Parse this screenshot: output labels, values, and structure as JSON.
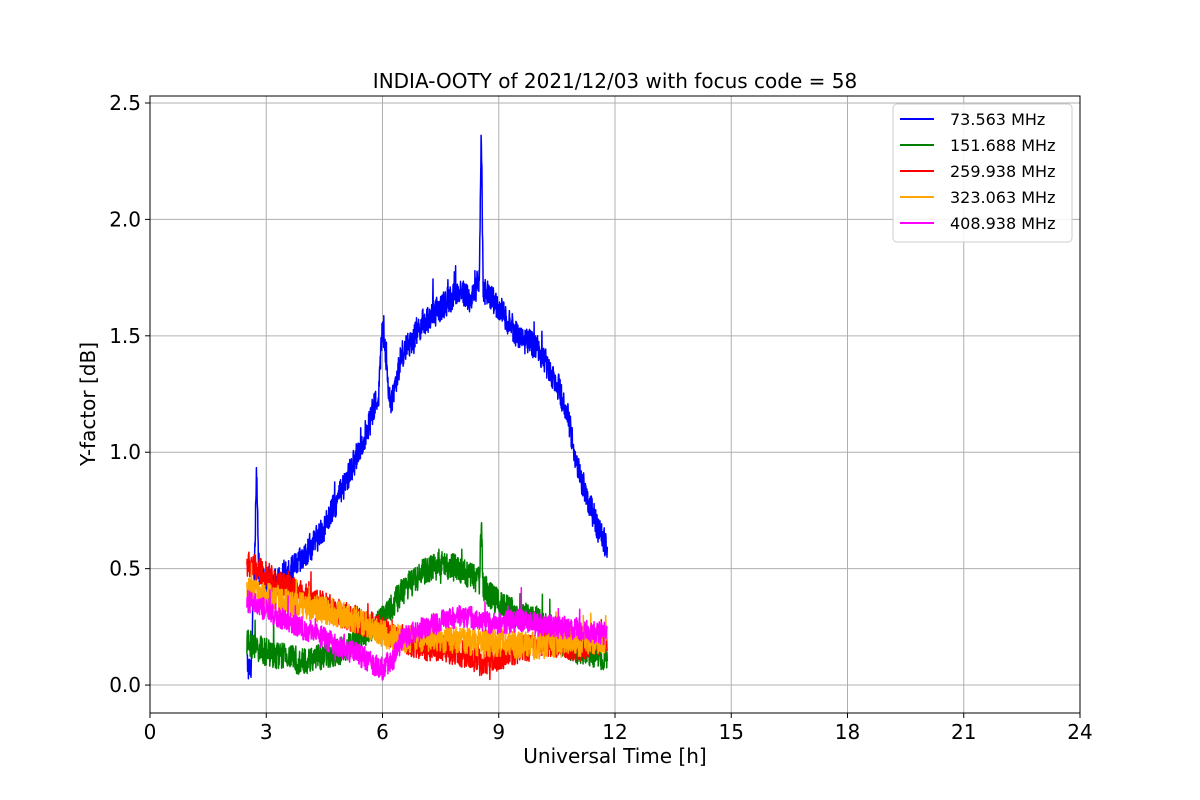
{
  "chart_data": {
    "type": "line",
    "title": "INDIA-OOTY of 2021/12/03 with focus code = 58",
    "xlabel": "Universal Time [h]",
    "ylabel": "Y-factor [dB]",
    "xlim": [
      0,
      24
    ],
    "ylim": [
      -0.12,
      2.53
    ],
    "xticks": [
      0,
      3,
      6,
      9,
      12,
      15,
      18,
      21,
      24
    ],
    "xtick_labels": [
      "0",
      "3",
      "6",
      "9",
      "12",
      "15",
      "18",
      "21",
      "24"
    ],
    "yticks": [
      0.0,
      0.5,
      1.0,
      1.5,
      2.0,
      2.5
    ],
    "ytick_labels": [
      "0.0",
      "0.5",
      "1.0",
      "1.5",
      "2.0",
      "2.5"
    ],
    "grid": true,
    "legend_position": "top-right",
    "series": [
      {
        "name": "  73.563 MHz",
        "color": "#0000ff",
        "noise": 0.06,
        "points": [
          [
            2.5,
            0.1
          ],
          [
            2.6,
            0.05
          ],
          [
            2.7,
            0.55
          ],
          [
            2.75,
            0.95
          ],
          [
            2.8,
            0.5
          ],
          [
            3.0,
            0.42
          ],
          [
            3.5,
            0.47
          ],
          [
            4.0,
            0.55
          ],
          [
            4.5,
            0.68
          ],
          [
            5.0,
            0.85
          ],
          [
            5.5,
            1.05
          ],
          [
            5.9,
            1.25
          ],
          [
            6.0,
            1.55
          ],
          [
            6.2,
            1.2
          ],
          [
            6.5,
            1.42
          ],
          [
            7.0,
            1.55
          ],
          [
            7.5,
            1.62
          ],
          [
            8.0,
            1.7
          ],
          [
            8.3,
            1.65
          ],
          [
            8.5,
            1.75
          ],
          [
            8.55,
            2.38
          ],
          [
            8.6,
            1.7
          ],
          [
            9.0,
            1.62
          ],
          [
            9.5,
            1.5
          ],
          [
            10.0,
            1.45
          ],
          [
            10.5,
            1.3
          ],
          [
            10.8,
            1.15
          ],
          [
            11.0,
            0.95
          ],
          [
            11.3,
            0.8
          ],
          [
            11.6,
            0.65
          ],
          [
            11.8,
            0.6
          ]
        ]
      },
      {
        "name": "151.688 MHz",
        "color": "#008000",
        "noise": 0.06,
        "points": [
          [
            2.5,
            0.18
          ],
          [
            3.0,
            0.14
          ],
          [
            4.0,
            0.1
          ],
          [
            5.0,
            0.15
          ],
          [
            6.0,
            0.28
          ],
          [
            6.5,
            0.4
          ],
          [
            7.0,
            0.48
          ],
          [
            7.5,
            0.52
          ],
          [
            8.0,
            0.5
          ],
          [
            8.5,
            0.45
          ],
          [
            8.55,
            0.7
          ],
          [
            8.6,
            0.42
          ],
          [
            9.0,
            0.35
          ],
          [
            9.5,
            0.3
          ],
          [
            10.0,
            0.28
          ],
          [
            10.5,
            0.2
          ],
          [
            11.0,
            0.15
          ],
          [
            11.8,
            0.12
          ]
        ]
      },
      {
        "name": "259.938 MHz",
        "color": "#ff0000",
        "noise": 0.06,
        "points": [
          [
            2.5,
            0.52
          ],
          [
            3.0,
            0.47
          ],
          [
            3.5,
            0.42
          ],
          [
            4.0,
            0.38
          ],
          [
            4.5,
            0.34
          ],
          [
            5.0,
            0.3
          ],
          [
            5.5,
            0.27
          ],
          [
            6.0,
            0.24
          ],
          [
            6.5,
            0.2
          ],
          [
            7.0,
            0.16
          ],
          [
            7.5,
            0.16
          ],
          [
            8.0,
            0.14
          ],
          [
            8.5,
            0.1
          ],
          [
            9.0,
            0.12
          ],
          [
            9.5,
            0.15
          ],
          [
            10.0,
            0.17
          ],
          [
            10.5,
            0.18
          ],
          [
            11.0,
            0.16
          ],
          [
            11.8,
            0.2
          ]
        ]
      },
      {
        "name": "323.063 MHz",
        "color": "#ffa500",
        "noise": 0.06,
        "points": [
          [
            2.5,
            0.4
          ],
          [
            3.0,
            0.38
          ],
          [
            3.5,
            0.36
          ],
          [
            4.0,
            0.34
          ],
          [
            4.5,
            0.32
          ],
          [
            5.0,
            0.3
          ],
          [
            5.5,
            0.27
          ],
          [
            6.0,
            0.22
          ],
          [
            6.5,
            0.2
          ],
          [
            7.0,
            0.2
          ],
          [
            7.5,
            0.2
          ],
          [
            8.0,
            0.19
          ],
          [
            8.5,
            0.18
          ],
          [
            9.0,
            0.18
          ],
          [
            9.5,
            0.17
          ],
          [
            10.0,
            0.17
          ],
          [
            10.5,
            0.18
          ],
          [
            11.0,
            0.18
          ],
          [
            11.8,
            0.2
          ]
        ]
      },
      {
        "name": "408.938 MHz",
        "color": "#ff00ff",
        "noise": 0.05,
        "points": [
          [
            2.5,
            0.36
          ],
          [
            3.0,
            0.32
          ],
          [
            3.5,
            0.28
          ],
          [
            4.0,
            0.24
          ],
          [
            4.5,
            0.2
          ],
          [
            5.0,
            0.16
          ],
          [
            5.5,
            0.12
          ],
          [
            6.0,
            0.07
          ],
          [
            6.3,
            0.12
          ],
          [
            6.5,
            0.2
          ],
          [
            7.0,
            0.24
          ],
          [
            7.5,
            0.27
          ],
          [
            8.0,
            0.3
          ],
          [
            8.5,
            0.28
          ],
          [
            9.0,
            0.26
          ],
          [
            9.5,
            0.28
          ],
          [
            10.0,
            0.26
          ],
          [
            10.5,
            0.25
          ],
          [
            11.0,
            0.24
          ],
          [
            11.8,
            0.22
          ]
        ]
      }
    ]
  }
}
